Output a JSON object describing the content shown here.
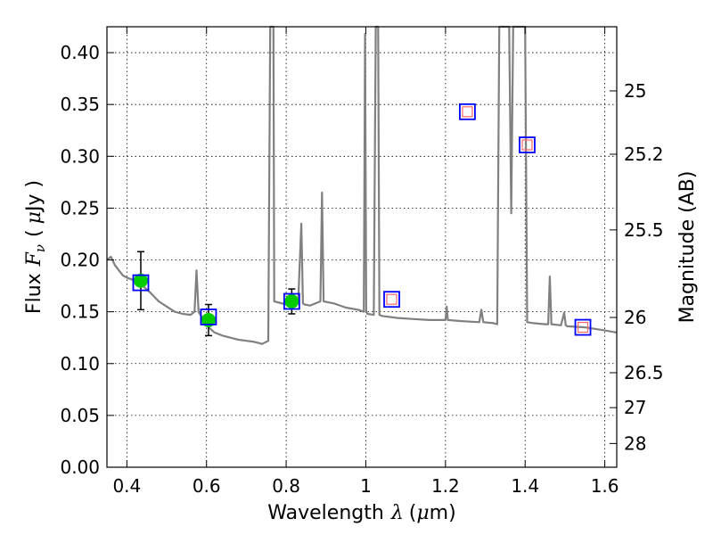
{
  "chart_data": {
    "type": "scatter",
    "title": "",
    "xlabel": {
      "text": "Wavelength",
      "symbol": "λ",
      "unit_open": "(",
      "unit_mu": "μ",
      "unit_rest": "m)"
    },
    "ylabel": {
      "text": "Flux",
      "symbol": "F",
      "symbol_sub": "ν",
      "unit_open": "(",
      "unit_mu": "μ",
      "unit_rest": "Jy )"
    },
    "y2label": "Magnitude (AB)",
    "xlim": [
      0.35,
      1.63
    ],
    "ylim": [
      0.0,
      0.425
    ],
    "xticks": [
      0.4,
      0.6,
      0.8,
      1.0,
      1.2,
      1.4,
      1.6
    ],
    "xtick_labels": [
      "0.4",
      "0.6",
      "0.8",
      "1",
      "1.2",
      "1.4",
      "1.6"
    ],
    "yticks": [
      0.0,
      0.05,
      0.1,
      0.15,
      0.2,
      0.25,
      0.3,
      0.35,
      0.4
    ],
    "ytick_labels": [
      "0.00",
      "0.05",
      "0.10",
      "0.15",
      "0.20",
      "0.25",
      "0.30",
      "0.35",
      "0.40"
    ],
    "y2ticks": [
      {
        "label": "25",
        "flux": 0.3631
      },
      {
        "label": "25.2",
        "flux": 0.302
      },
      {
        "label": "25.5",
        "flux": 0.229
      },
      {
        "label": "26",
        "flux": 0.1445
      },
      {
        "label": "26.5",
        "flux": 0.0912
      },
      {
        "label": "27",
        "flux": 0.0575
      },
      {
        "label": "28",
        "flux": 0.0229
      }
    ],
    "grid": true,
    "colors": {
      "model": "#808080",
      "observed_fill": "#00cc00",
      "model_band_edge": "#0000ff",
      "inner_square_edge": "#ff6666",
      "errorbar": "#000000"
    },
    "series": [
      {
        "kind": "model_spectrum",
        "x": [
          0.35,
          0.36,
          0.37,
          0.38,
          0.39,
          0.4,
          0.42,
          0.44,
          0.46,
          0.48,
          0.5,
          0.52,
          0.54,
          0.56,
          0.57,
          0.575,
          0.58,
          0.6,
          0.62,
          0.64,
          0.66,
          0.68,
          0.7,
          0.72,
          0.74,
          0.755,
          0.76,
          0.763,
          0.766,
          0.768,
          0.77,
          0.8,
          0.83,
          0.838,
          0.842,
          0.846,
          0.86,
          0.886,
          0.89,
          0.894,
          0.92,
          0.95,
          0.98,
          0.995,
          0.998,
          1.001,
          1.004,
          1.02,
          1.025,
          1.028,
          1.031,
          1.034,
          1.04,
          1.08,
          1.12,
          1.16,
          1.2,
          1.203,
          1.206,
          1.24,
          1.285,
          1.29,
          1.295,
          1.32,
          1.33,
          1.335,
          1.34,
          1.345,
          1.36,
          1.365,
          1.37,
          1.38,
          1.395,
          1.4,
          1.405,
          1.42,
          1.45,
          1.458,
          1.462,
          1.466,
          1.49,
          1.498,
          1.502,
          1.506,
          1.55,
          1.6,
          1.63
        ],
        "y": [
          0.2,
          0.203,
          0.195,
          0.19,
          0.185,
          0.183,
          0.18,
          0.175,
          0.168,
          0.16,
          0.155,
          0.15,
          0.148,
          0.147,
          0.15,
          0.19,
          0.15,
          0.137,
          0.13,
          0.127,
          0.125,
          0.123,
          0.122,
          0.121,
          0.119,
          0.122,
          0.43,
          0.43,
          0.43,
          0.43,
          0.16,
          0.157,
          0.158,
          0.235,
          0.158,
          0.157,
          0.156,
          0.16,
          0.265,
          0.16,
          0.158,
          0.154,
          0.152,
          0.15,
          0.418,
          0.15,
          0.148,
          0.147,
          0.43,
          0.43,
          0.43,
          0.147,
          0.146,
          0.144,
          0.143,
          0.142,
          0.142,
          0.155,
          0.142,
          0.141,
          0.14,
          0.152,
          0.14,
          0.139,
          0.138,
          0.43,
          0.43,
          0.43,
          0.43,
          0.245,
          0.43,
          0.43,
          0.43,
          0.43,
          0.14,
          0.139,
          0.138,
          0.138,
          0.184,
          0.138,
          0.137,
          0.149,
          0.137,
          0.136,
          0.135,
          0.132,
          0.13
        ]
      },
      {
        "kind": "observed",
        "x": [
          0.435,
          0.605,
          0.814
        ],
        "y": [
          0.18,
          0.142,
          0.16
        ],
        "yerr": [
          0.028,
          0.015,
          0.012
        ]
      },
      {
        "kind": "model_photometry",
        "x": [
          0.435,
          0.605,
          0.814,
          1.065,
          1.255,
          1.405,
          1.545
        ],
        "y": [
          0.178,
          0.145,
          0.16,
          0.162,
          0.343,
          0.311,
          0.135
        ]
      }
    ]
  }
}
